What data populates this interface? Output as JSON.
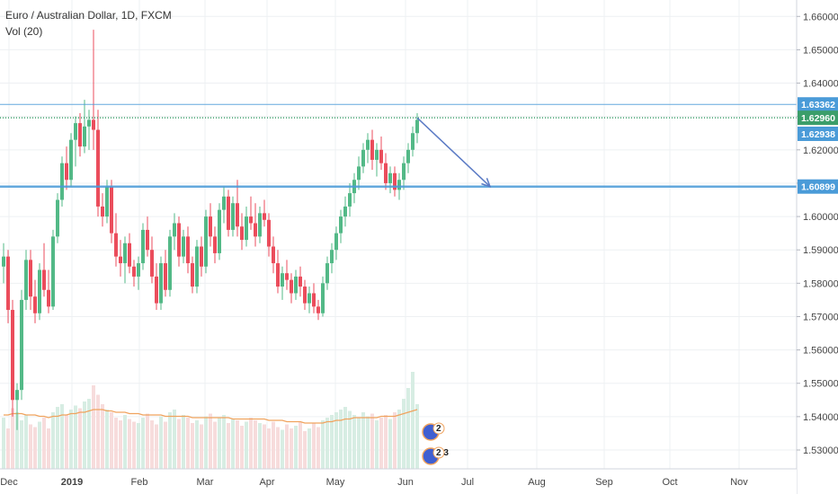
{
  "header": {
    "title": "Euro / Australian Dollar, 1D, FXCM",
    "volume_label": "Vol (20)"
  },
  "chart_data": {
    "type": "candlestick",
    "symbol": "Euro / Australian Dollar",
    "interval": "1D",
    "source": "FXCM",
    "ylim": [
      1.5265,
      1.6625
    ],
    "y_ticks": [
      "1.66000",
      "1.65000",
      "1.64000",
      "1.63000",
      "1.62000",
      "1.61000",
      "1.60000",
      "1.59000",
      "1.58000",
      "1.57000",
      "1.56000",
      "1.55000",
      "1.54000",
      "1.53000"
    ],
    "x_ticks": [
      "Dec",
      "2019",
      "Feb",
      "Mar",
      "Apr",
      "May",
      "Jun",
      "Jul",
      "Aug",
      "Sep",
      "Oct",
      "Nov"
    ],
    "price_labels": [
      {
        "text": "1.63362",
        "value": 1.63362,
        "color": "#4a9bd8",
        "line": "solid"
      },
      {
        "text": "1.62960",
        "value": 1.6296,
        "color": "#3b9e6a",
        "line": "dotted"
      },
      {
        "text": "1.62938",
        "value": 1.62938,
        "color": "#4a9bd8",
        "line": "solid"
      },
      {
        "text": "1.60899",
        "value": 1.60899,
        "color": "#4a9bd8",
        "line": "solid"
      }
    ],
    "arrow": {
      "from": {
        "date": "Jun 11",
        "price": 1.6296
      },
      "to": {
        "date": "Jul 13",
        "price": 1.609
      },
      "color": "#5b7bc5"
    },
    "badges": [
      "2",
      "2 3"
    ],
    "ohlc": [
      [
        1.585,
        1.592,
        1.58,
        1.588
      ],
      [
        1.588,
        1.59,
        1.568,
        1.572
      ],
      [
        1.572,
        1.575,
        1.54,
        1.545
      ],
      [
        1.545,
        1.55,
        1.536,
        1.548
      ],
      [
        1.548,
        1.578,
        1.545,
        1.575
      ],
      [
        1.575,
        1.59,
        1.572,
        1.587
      ],
      [
        1.587,
        1.59,
        1.572,
        1.576
      ],
      [
        1.576,
        1.581,
        1.568,
        1.571
      ],
      [
        1.571,
        1.586,
        1.569,
        1.584
      ],
      [
        1.584,
        1.592,
        1.576,
        1.578
      ],
      [
        1.578,
        1.584,
        1.571,
        1.573
      ],
      [
        1.573,
        1.596,
        1.572,
        1.594
      ],
      [
        1.594,
        1.607,
        1.592,
        1.605
      ],
      [
        1.605,
        1.618,
        1.603,
        1.616
      ],
      [
        1.616,
        1.621,
        1.608,
        1.611
      ],
      [
        1.611,
        1.625,
        1.609,
        1.623
      ],
      [
        1.623,
        1.63,
        1.615,
        1.628
      ],
      [
        1.628,
        1.631,
        1.618,
        1.621
      ],
      [
        1.621,
        1.635,
        1.619,
        1.627
      ],
      [
        1.627,
        1.632,
        1.62,
        1.629
      ],
      [
        1.629,
        1.656,
        1.62,
        1.626
      ],
      [
        1.626,
        1.632,
        1.6,
        1.603
      ],
      [
        1.603,
        1.607,
        1.597,
        1.6
      ],
      [
        1.6,
        1.611,
        1.598,
        1.609
      ],
      [
        1.609,
        1.611,
        1.592,
        1.595
      ],
      [
        1.595,
        1.601,
        1.585,
        1.588
      ],
      [
        1.588,
        1.593,
        1.582,
        1.586
      ],
      [
        1.586,
        1.594,
        1.58,
        1.592
      ],
      [
        1.592,
        1.595,
        1.583,
        1.585
      ],
      [
        1.585,
        1.587,
        1.579,
        1.582
      ],
      [
        1.582,
        1.588,
        1.578,
        1.586
      ],
      [
        1.586,
        1.598,
        1.584,
        1.596
      ],
      [
        1.596,
        1.6,
        1.588,
        1.59
      ],
      [
        1.59,
        1.594,
        1.58,
        1.582
      ],
      [
        1.582,
        1.586,
        1.572,
        1.574
      ],
      [
        1.574,
        1.588,
        1.572,
        1.586
      ],
      [
        1.586,
        1.59,
        1.576,
        1.578
      ],
      [
        1.578,
        1.596,
        1.576,
        1.594
      ],
      [
        1.594,
        1.601,
        1.59,
        1.598
      ],
      [
        1.598,
        1.6,
        1.585,
        1.588
      ],
      [
        1.588,
        1.596,
        1.586,
        1.594
      ],
      [
        1.594,
        1.597,
        1.583,
        1.586
      ],
      [
        1.586,
        1.588,
        1.577,
        1.579
      ],
      [
        1.579,
        1.593,
        1.577,
        1.591
      ],
      [
        1.591,
        1.594,
        1.582,
        1.585
      ],
      [
        1.585,
        1.602,
        1.583,
        1.6
      ],
      [
        1.6,
        1.604,
        1.591,
        1.594
      ],
      [
        1.594,
        1.597,
        1.586,
        1.589
      ],
      [
        1.589,
        1.604,
        1.587,
        1.602
      ],
      [
        1.602,
        1.609,
        1.598,
        1.606
      ],
      [
        1.606,
        1.608,
        1.594,
        1.596
      ],
      [
        1.596,
        1.606,
        1.594,
        1.604
      ],
      [
        1.604,
        1.611,
        1.594,
        1.597
      ],
      [
        1.597,
        1.601,
        1.59,
        1.593
      ],
      [
        1.593,
        1.603,
        1.591,
        1.6
      ],
      [
        1.6,
        1.606,
        1.596,
        1.598
      ],
      [
        1.598,
        1.604,
        1.591,
        1.594
      ],
      [
        1.594,
        1.603,
        1.592,
        1.601
      ],
      [
        1.601,
        1.605,
        1.597,
        1.599
      ],
      [
        1.599,
        1.601,
        1.588,
        1.591
      ],
      [
        1.591,
        1.594,
        1.583,
        1.586
      ],
      [
        1.586,
        1.59,
        1.577,
        1.579
      ],
      [
        1.579,
        1.585,
        1.575,
        1.583
      ],
      [
        1.583,
        1.587,
        1.578,
        1.581
      ],
      [
        1.581,
        1.583,
        1.574,
        1.577
      ],
      [
        1.577,
        1.584,
        1.575,
        1.582
      ],
      [
        1.582,
        1.585,
        1.576,
        1.579
      ],
      [
        1.579,
        1.581,
        1.572,
        1.574
      ],
      [
        1.574,
        1.579,
        1.571,
        1.577
      ],
      [
        1.577,
        1.58,
        1.571,
        1.573
      ],
      [
        1.573,
        1.575,
        1.569,
        1.571
      ],
      [
        1.571,
        1.582,
        1.57,
        1.58
      ],
      [
        1.58,
        1.588,
        1.578,
        1.586
      ],
      [
        1.586,
        1.592,
        1.583,
        1.59
      ],
      [
        1.59,
        1.597,
        1.587,
        1.595
      ],
      [
        1.595,
        1.602,
        1.592,
        1.6
      ],
      [
        1.6,
        1.606,
        1.597,
        1.603
      ],
      [
        1.603,
        1.61,
        1.6,
        1.607
      ],
      [
        1.607,
        1.613,
        1.604,
        1.611
      ],
      [
        1.611,
        1.618,
        1.608,
        1.615
      ],
      [
        1.615,
        1.622,
        1.613,
        1.62
      ],
      [
        1.62,
        1.625,
        1.616,
        1.623
      ],
      [
        1.623,
        1.626,
        1.614,
        1.617
      ],
      [
        1.617,
        1.622,
        1.612,
        1.62
      ],
      [
        1.62,
        1.624,
        1.614,
        1.616
      ],
      [
        1.616,
        1.619,
        1.608,
        1.61
      ],
      [
        1.61,
        1.615,
        1.607,
        1.613
      ],
      [
        1.613,
        1.615,
        1.606,
        1.608
      ],
      [
        1.608,
        1.613,
        1.605,
        1.611
      ],
      [
        1.611,
        1.618,
        1.608,
        1.616
      ],
      [
        1.616,
        1.622,
        1.613,
        1.62
      ],
      [
        1.62,
        1.627,
        1.618,
        1.625
      ],
      [
        1.625,
        1.631,
        1.622,
        1.629
      ]
    ],
    "volume": [
      38,
      30,
      45,
      42,
      36,
      40,
      33,
      31,
      35,
      38,
      30,
      42,
      46,
      48,
      40,
      44,
      47,
      45,
      50,
      52,
      62,
      55,
      48,
      44,
      42,
      38,
      36,
      40,
      37,
      35,
      34,
      38,
      41,
      36,
      33,
      39,
      35,
      42,
      44,
      37,
      40,
      38,
      34,
      36,
      33,
      39,
      41,
      35,
      38,
      40,
      34,
      37,
      36,
      32,
      35,
      38,
      36,
      34,
      33,
      30,
      35,
      31,
      29,
      33,
      30,
      32,
      35,
      28,
      30,
      34,
      31,
      36,
      38,
      40,
      42,
      44,
      46,
      43,
      40,
      38,
      42,
      39,
      41,
      36,
      38,
      40,
      37,
      42,
      44,
      52,
      60,
      72,
      48
    ],
    "volume_ma": [
      40,
      40,
      41,
      41,
      41,
      40,
      40,
      40,
      39,
      39,
      38,
      39,
      39,
      40,
      40,
      41,
      41,
      42,
      42,
      43,
      44,
      44,
      44,
      43,
      43,
      42,
      42,
      42,
      41,
      41,
      41,
      40,
      40,
      40,
      40,
      40,
      39,
      39,
      39,
      39,
      39,
      39,
      38,
      38,
      38,
      38,
      38,
      38,
      38,
      38,
      38,
      37,
      37,
      37,
      37,
      37,
      37,
      37,
      37,
      36,
      36,
      36,
      36,
      35,
      35,
      35,
      35,
      34,
      34,
      34,
      34,
      34,
      35,
      35,
      36,
      36,
      37,
      37,
      38,
      38,
      38,
      38,
      38,
      38,
      39,
      39,
      39,
      39,
      40,
      41,
      42,
      43,
      44
    ]
  }
}
